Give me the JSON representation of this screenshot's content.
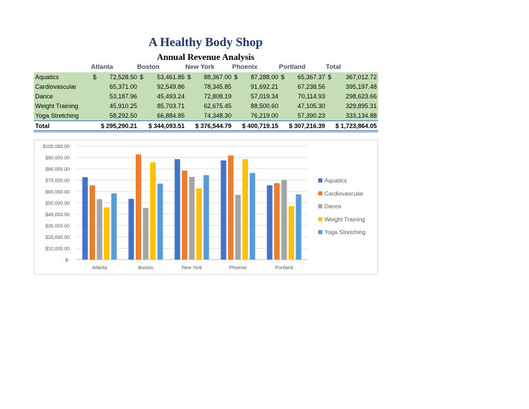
{
  "title": "A Healthy Body Shop",
  "subtitle": "Annual Revenue Analysis",
  "table": {
    "columns": [
      "Atlanta",
      "Boston",
      "New York",
      "Phoenix",
      "Portland",
      "Total"
    ],
    "rows": [
      {
        "label": "Aquatics",
        "cells": [
          "72,528.50",
          "53,461.85",
          "88,367.00",
          "87,288.00",
          "65,367.37",
          "367,012.72"
        ]
      },
      {
        "label": "Cardiovascular",
        "cells": [
          "65,371.00",
          "92,549.86",
          "78,345.85",
          "91,692.21",
          "67,238.56",
          "395,197.48"
        ]
      },
      {
        "label": "Dance",
        "cells": [
          "53,187.96",
          "45,493.24",
          "72,808.19",
          "57,019.34",
          "70,114.93",
          "298,623.66"
        ]
      },
      {
        "label": "Weight Training",
        "cells": [
          "45,910.25",
          "85,703.71",
          "62,675.45",
          "88,500.60",
          "47,105.30",
          "329,895.31"
        ]
      },
      {
        "label": "Yoga Stretching",
        "cells": [
          "58,292.50",
          "66,884.85",
          "74,348.30",
          "76,219.00",
          "57,390.23",
          "333,134.88"
        ]
      }
    ],
    "total": {
      "label": "Total",
      "cells": [
        "$ 295,290.21",
        "$ 344,093.51",
        "$ 376,544.79",
        "$ 400,719.15",
        "$ 307,216.39",
        "$ 1,723,864.05"
      ]
    },
    "currency_symbol": "$"
  },
  "chart_data": {
    "type": "bar",
    "categories": [
      "Atlanta",
      "Boston",
      "New York",
      "Phoenix",
      "Portland"
    ],
    "series": [
      {
        "name": "Aquatics",
        "color": "#4472c4",
        "values": [
          72528.5,
          53461.85,
          88367.0,
          87288.0,
          65367.37
        ]
      },
      {
        "name": "Cardiovascular",
        "color": "#ed7d31",
        "values": [
          65371.0,
          92549.86,
          78345.85,
          91692.21,
          67238.56
        ]
      },
      {
        "name": "Dance",
        "color": "#a5a5a5",
        "values": [
          53187.96,
          45493.24,
          72808.19,
          57019.34,
          70114.93
        ]
      },
      {
        "name": "Weight Training",
        "color": "#ffc000",
        "values": [
          45910.25,
          85703.71,
          62675.45,
          88500.6,
          47105.3
        ]
      },
      {
        "name": "Yoga Stretching",
        "color": "#5b9bd5",
        "values": [
          58292.5,
          66884.85,
          74348.3,
          76219.0,
          57390.23
        ]
      }
    ],
    "ylim": [
      0,
      100000
    ],
    "yticks": [
      "$-",
      "$10,000.00",
      "$20,000.00",
      "$30,000.00",
      "$40,000.00",
      "$50,000.00",
      "$60,000.00",
      "$70,000.00",
      "$80,000.00",
      "$90,000.00",
      "$100,000.00"
    ],
    "grid": true,
    "legend_position": "right"
  }
}
